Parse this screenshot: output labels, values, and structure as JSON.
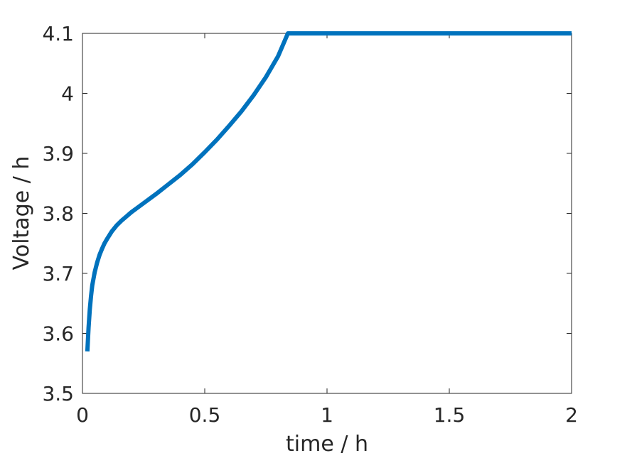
{
  "chart_data": {
    "type": "line",
    "title": "",
    "xlabel": "time / h",
    "ylabel": "Voltage / h",
    "xlim": [
      0,
      2
    ],
    "ylim": [
      3.5,
      4.1
    ],
    "xticks": [
      "0",
      "0.5",
      "1",
      "1.5",
      "2"
    ],
    "yticks": [
      "3.5",
      "3.6",
      "3.7",
      "3.8",
      "3.9",
      "4",
      "4.1"
    ],
    "grid": false,
    "line_color": "#0072BD",
    "series": [
      {
        "x": [
          0.02,
          0.025,
          0.03,
          0.035,
          0.04,
          0.05,
          0.06,
          0.07,
          0.08,
          0.09,
          0.1,
          0.12,
          0.14,
          0.16,
          0.18,
          0.2,
          0.22,
          0.25,
          0.3,
          0.35,
          0.4,
          0.45,
          0.5,
          0.55,
          0.6,
          0.65,
          0.7,
          0.75,
          0.8,
          0.84,
          1.0,
          1.5,
          2.0
        ],
        "y": [
          3.57,
          3.61,
          3.64,
          3.662,
          3.68,
          3.702,
          3.718,
          3.731,
          3.741,
          3.75,
          3.757,
          3.77,
          3.78,
          3.788,
          3.795,
          3.802,
          3.808,
          3.817,
          3.832,
          3.848,
          3.864,
          3.882,
          3.902,
          3.923,
          3.946,
          3.97,
          3.997,
          4.027,
          4.062,
          4.1,
          4.1,
          4.1,
          4.1
        ]
      }
    ]
  }
}
